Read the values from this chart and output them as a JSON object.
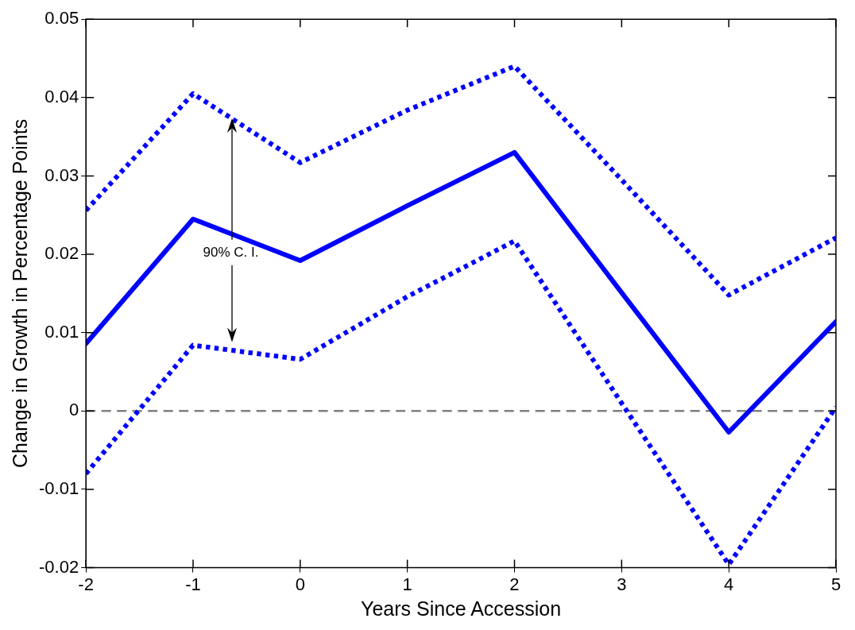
{
  "chart_data": {
    "type": "line",
    "xlabel": "Years Since Accession",
    "ylabel": "Change in Growth in Percentage Points",
    "x": [
      -2,
      -1,
      0,
      1,
      2,
      3,
      4,
      5
    ],
    "series": [
      {
        "color": "#0000ff",
        "line_style": "solid",
        "values": [
          0.0086,
          0.0245,
          0.0192,
          0.0262,
          0.033,
          0.0151,
          -0.0027,
          0.0114
        ]
      },
      {
        "color": "#0000ff",
        "line_style": "dotted",
        "values": [
          0.0256,
          0.0405,
          0.0317,
          0.0384,
          0.044,
          0.0295,
          0.0148,
          0.0221
        ]
      },
      {
        "color": "#0000ff",
        "line_style": "dotted",
        "values": [
          -0.008,
          0.0084,
          0.0066,
          0.0146,
          0.0217,
          0.001,
          -0.0196,
          0.0005
        ]
      }
    ],
    "xlim": [
      -2,
      5
    ],
    "xticks": [
      -2,
      -1,
      0,
      1,
      2,
      3,
      4,
      5
    ],
    "ylim": [
      -0.02,
      0.05
    ],
    "yticks": [
      -0.02,
      -0.01,
      0,
      0.01,
      0.02,
      0.03,
      0.04,
      0.05
    ],
    "ref_lines": [
      {
        "axis": "y",
        "value": 0,
        "color": "#808080",
        "line_style": "dashed"
      }
    ],
    "annotations": [
      {
        "text": "90% C. I.",
        "x": -0.64,
        "y": 0.0373
      }
    ],
    "grid": false,
    "legend": false,
    "marker": "none"
  }
}
